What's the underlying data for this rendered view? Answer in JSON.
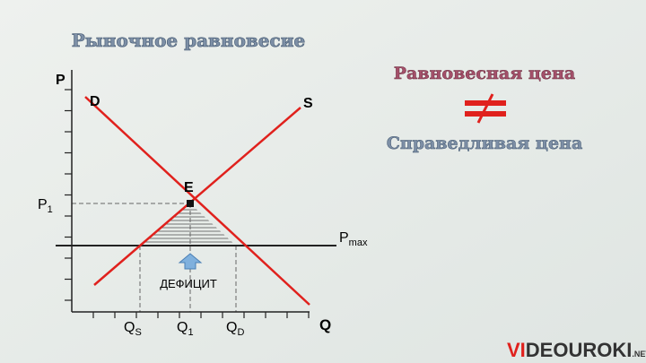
{
  "title": "Рыночное равновесие",
  "graph": {
    "y_axis": "P",
    "x_axis": "Q",
    "demand": "D",
    "supply": "S",
    "equilibrium": "E",
    "p1": {
      "main": "P",
      "sub": "1"
    },
    "pmax": {
      "main": "P",
      "sub": "max"
    },
    "deficit": "ДЕФИЦИТ",
    "qs": {
      "main": "Q",
      "sub": "S"
    },
    "q1": {
      "main": "Q",
      "sub": "1"
    },
    "qd": {
      "main": "Q",
      "sub": "D"
    }
  },
  "side": {
    "top": "Равновесная цена",
    "bottom": "Справедливая цена"
  },
  "logo": {
    "red": "VI",
    "dark": "DEOUROKI",
    "small": ".NET"
  }
}
